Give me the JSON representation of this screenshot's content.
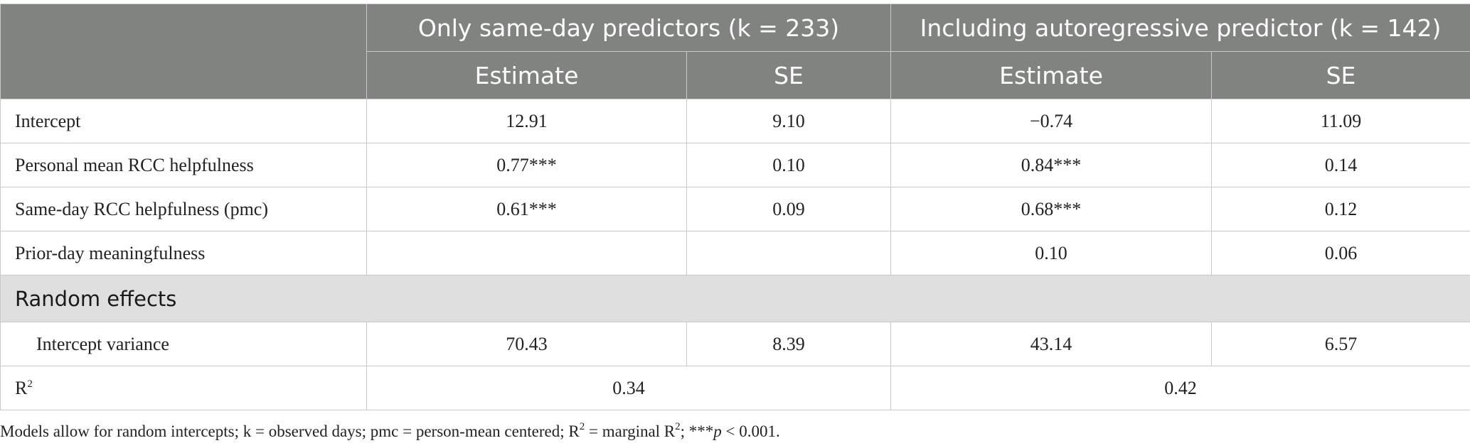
{
  "table": {
    "groups": [
      "Only same-day predictors (k = 233)",
      "Including autoregressive predictor (k = 142)"
    ],
    "subheaders": [
      "Estimate",
      "SE",
      "Estimate",
      "SE"
    ],
    "rows": [
      {
        "label": "Intercept",
        "values": [
          "12.91",
          "9.10",
          "−0.74",
          "11.09"
        ]
      },
      {
        "label": "Personal mean RCC helpfulness",
        "values": [
          "0.77***",
          "0.10",
          "0.84***",
          "0.14"
        ]
      },
      {
        "label": "Same-day RCC helpfulness (pmc)",
        "values": [
          "0.61***",
          "0.09",
          "0.68***",
          "0.12"
        ]
      },
      {
        "label": "Prior-day meaningfulness",
        "values": [
          "",
          "",
          "0.10",
          "0.06"
        ]
      }
    ],
    "section_label": "Random effects",
    "variance_row": {
      "label": "Intercept variance",
      "values": [
        "70.43",
        "8.39",
        "43.14",
        "6.57"
      ]
    },
    "r2_row": {
      "label": "R",
      "label_sup": "2",
      "values": [
        "0.34",
        "0.42"
      ]
    }
  },
  "footnote": {
    "part1": "Models allow for random intercepts; k = observed days; pmc = person-mean centered; R",
    "sup1": "2",
    "part2": " = marginal R",
    "sup2": "2",
    "part3": "; ***",
    "p_symbol": "p",
    "part4": " < 0.001."
  }
}
